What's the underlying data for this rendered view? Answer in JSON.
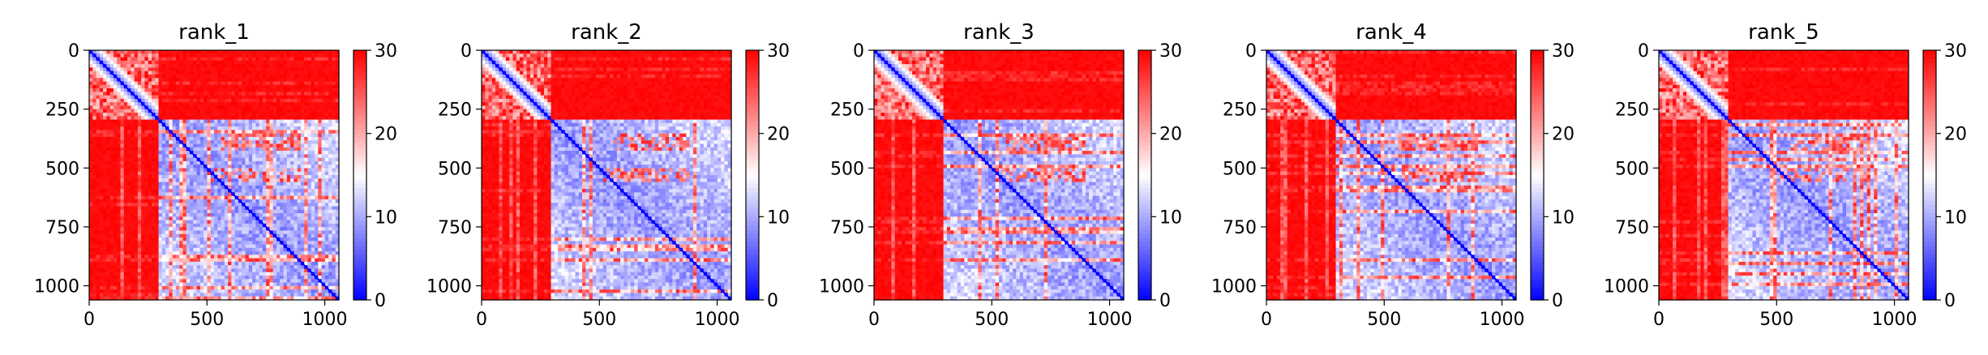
{
  "chart_data": [
    {
      "type": "heatmap",
      "title": "rank_1",
      "xlabel": "",
      "ylabel": "",
      "xlim": [
        0,
        1060
      ],
      "ylim": [
        1060,
        0
      ],
      "x_ticks": [
        0,
        500,
        1000
      ],
      "y_ticks": [
        0,
        250,
        500,
        750,
        1000
      ],
      "colorbar": {
        "ticks": [
          0,
          10,
          20,
          30
        ],
        "range": [
          0,
          30
        ],
        "colormap": "bwr"
      },
      "structure": {
        "domain_boundary": 290,
        "diagonal_value": 0,
        "inter_domain_value": 30,
        "intra_domain_value": 8
      }
    },
    {
      "type": "heatmap",
      "title": "rank_2",
      "xlabel": "",
      "ylabel": "",
      "xlim": [
        0,
        1060
      ],
      "ylim": [
        1060,
        0
      ],
      "x_ticks": [
        0,
        500,
        1000
      ],
      "y_ticks": [
        0,
        250,
        500,
        750,
        1000
      ],
      "colorbar": {
        "ticks": [
          0,
          10,
          20,
          30
        ],
        "range": [
          0,
          30
        ],
        "colormap": "bwr"
      },
      "structure": {
        "domain_boundary": 290,
        "diagonal_value": 0,
        "inter_domain_value": 30,
        "intra_domain_value": 8
      }
    },
    {
      "type": "heatmap",
      "title": "rank_3",
      "xlabel": "",
      "ylabel": "",
      "xlim": [
        0,
        1060
      ],
      "ylim": [
        1060,
        0
      ],
      "x_ticks": [
        0,
        500,
        1000
      ],
      "y_ticks": [
        0,
        250,
        500,
        750,
        1000
      ],
      "colorbar": {
        "ticks": [
          0,
          10,
          20,
          30
        ],
        "range": [
          0,
          30
        ],
        "colormap": "bwr"
      },
      "structure": {
        "domain_boundary": 290,
        "diagonal_value": 0,
        "inter_domain_value": 30,
        "intra_domain_value": 8
      }
    },
    {
      "type": "heatmap",
      "title": "rank_4",
      "xlabel": "",
      "ylabel": "",
      "xlim": [
        0,
        1060
      ],
      "ylim": [
        1060,
        0
      ],
      "x_ticks": [
        0,
        500,
        1000
      ],
      "y_ticks": [
        0,
        250,
        500,
        750,
        1000
      ],
      "colorbar": {
        "ticks": [
          0,
          10,
          20,
          30
        ],
        "range": [
          0,
          30
        ],
        "colormap": "bwr"
      },
      "structure": {
        "domain_boundary": 290,
        "diagonal_value": 0,
        "inter_domain_value": 30,
        "intra_domain_value": 8
      }
    },
    {
      "type": "heatmap",
      "title": "rank_5",
      "xlabel": "",
      "ylabel": "",
      "xlim": [
        0,
        1060
      ],
      "ylim": [
        1060,
        0
      ],
      "x_ticks": [
        0,
        500,
        1000
      ],
      "y_ticks": [
        0,
        250,
        500,
        750,
        1000
      ],
      "colorbar": {
        "ticks": [
          0,
          10,
          20,
          30
        ],
        "range": [
          0,
          30
        ],
        "colormap": "bwr"
      },
      "structure": {
        "domain_boundary": 290,
        "diagonal_value": 0,
        "inter_domain_value": 30,
        "intra_domain_value": 8
      }
    }
  ]
}
